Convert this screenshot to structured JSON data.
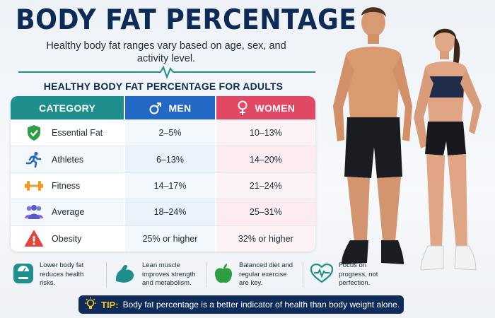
{
  "title": "BODY FAT PERCENTAGE",
  "subtitle": "Healthy body fat ranges vary based on age, sex, and activity level.",
  "section_title": "HEALTHY BODY FAT PERCENTAGE FOR ADULTS",
  "table": {
    "headers": {
      "category": "CATEGORY",
      "men": "MEN",
      "women": "WOMEN"
    },
    "rows": [
      {
        "category": "Essential Fat",
        "men": "2–5%",
        "women": "10–13%",
        "icon": "shield-check-icon",
        "color": "#2e9e44"
      },
      {
        "category": "Athletes",
        "men": "6–13%",
        "women": "14–20%",
        "icon": "runner-icon",
        "color": "#2468c5"
      },
      {
        "category": "Fitness",
        "men": "14–17%",
        "women": "21–24%",
        "icon": "dumbbell-icon",
        "color": "#f29a1f"
      },
      {
        "category": "Average",
        "men": "18–24%",
        "women": "25–31%",
        "icon": "group-icon",
        "color": "#5a58c9"
      },
      {
        "category": "Obesity",
        "men": "25% or higher",
        "women": "32% or higher",
        "icon": "warning-icon",
        "color": "#e0443c"
      }
    ]
  },
  "facts": [
    {
      "text": "Lower body fat reduces health risks.",
      "icon": "scale-icon"
    },
    {
      "text": "Lean muscle improves strength and metabolism.",
      "icon": "flexed-arm-icon"
    },
    {
      "text": "Balanced diet and regular exercise are key.",
      "icon": "apple-icon"
    },
    {
      "text": "Focus on progress, not perfection.",
      "icon": "heart-pulse-icon"
    }
  ],
  "tip": {
    "label": "TIP:",
    "text": "Body fat percentage is a better indicator of health than body weight alone."
  },
  "colors": {
    "navy": "#0d2b57",
    "teal": "#1e8f8c",
    "men_blue": "#2468c5",
    "women_pink": "#e04864"
  }
}
